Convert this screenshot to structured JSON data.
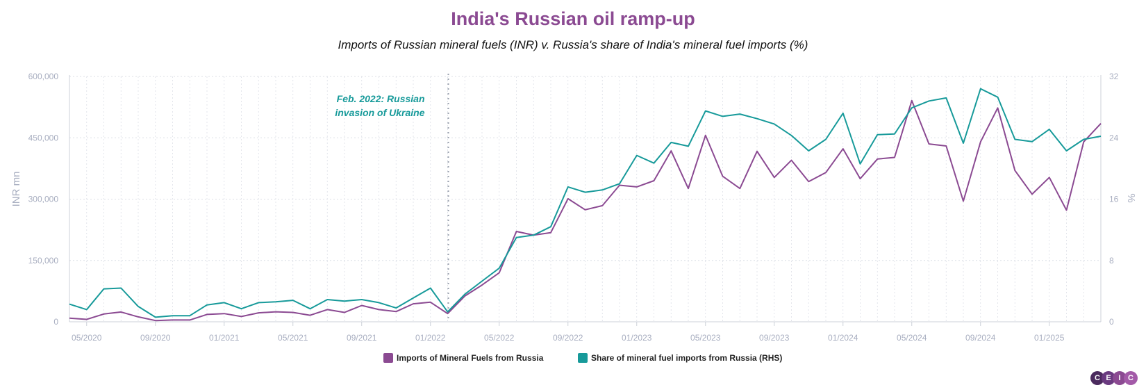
{
  "colors": {
    "imports": "#8b4a92",
    "share": "#179a9a",
    "annotation": "#179a9a",
    "axis_text": "#a8aec0"
  },
  "logo": {
    "letters": [
      "C",
      "E",
      "I",
      "C"
    ],
    "colors": [
      "#4b2a5e",
      "#6a3a80",
      "#8b4a92",
      "#a35aa8"
    ]
  },
  "chart_data": {
    "type": "line",
    "title": "India's Russian oil ramp-up",
    "subtitle": "Imports of Russian mineral fuels (INR) v. Russia's share of India's mineral fuel imports (%)",
    "ylabel": "INR mn",
    "y2label": "%",
    "ylim": [
      0,
      600000
    ],
    "y2lim": [
      0,
      32
    ],
    "yticks": [
      "0",
      "150,000",
      "300,000",
      "450,000",
      "600,000"
    ],
    "y2ticks": [
      "0",
      "8",
      "16",
      "24",
      "32"
    ],
    "xticks": [
      "05/2020",
      "09/2020",
      "01/2021",
      "05/2021",
      "09/2021",
      "01/2022",
      "05/2022",
      "09/2022",
      "01/2023",
      "05/2023",
      "09/2023",
      "01/2024",
      "05/2024",
      "09/2024",
      "01/2025"
    ],
    "x_start": "2020-04",
    "x_end": "2025-04",
    "grid": true,
    "legend_position": "bottom-center",
    "annotation": {
      "date": "2022-02",
      "lines": [
        "Feb. 2022: Russian",
        "invasion of Ukraine"
      ]
    },
    "series": [
      {
        "name": "Imports of Mineral Fuels from Russia",
        "axis": "left",
        "values": [
          9000,
          6000,
          19000,
          24000,
          12000,
          3000,
          4500,
          4500,
          18000,
          20000,
          13000,
          22000,
          24500,
          23000,
          16000,
          30000,
          23000,
          40000,
          30000,
          25000,
          44000,
          48000,
          20000,
          63000,
          90000,
          120000,
          221000,
          212000,
          218000,
          301000,
          274000,
          284000,
          334000,
          330000,
          345000,
          418000,
          326000,
          456000,
          356000,
          326000,
          417000,
          353000,
          395000,
          343000,
          365000,
          423000,
          350000,
          398000,
          402000,
          541000,
          435000,
          430000,
          295000,
          440000,
          523000,
          370000,
          312000,
          353000,
          273000,
          440000,
          485000
        ]
      },
      {
        "name": "Share of mineral fuel imports from Russia (RHS)",
        "axis": "right",
        "values": [
          2.3,
          1.6,
          4.3,
          4.4,
          2.0,
          0.6,
          0.8,
          0.8,
          2.2,
          2.5,
          1.7,
          2.5,
          2.6,
          2.8,
          1.7,
          2.9,
          2.7,
          2.9,
          2.5,
          1.8,
          3.1,
          4.4,
          1.3,
          3.6,
          5.3,
          7.0,
          11.0,
          11.3,
          12.4,
          17.6,
          16.9,
          17.2,
          18.0,
          21.7,
          20.7,
          23.4,
          22.9,
          27.5,
          26.8,
          27.1,
          26.5,
          25.8,
          24.3,
          22.3,
          23.8,
          27.2,
          20.6,
          24.4,
          24.5,
          27.9,
          28.8,
          29.2,
          23.3,
          30.4,
          29.3,
          23.8,
          23.5,
          25.1,
          22.3,
          23.8,
          24.2
        ]
      }
    ]
  }
}
